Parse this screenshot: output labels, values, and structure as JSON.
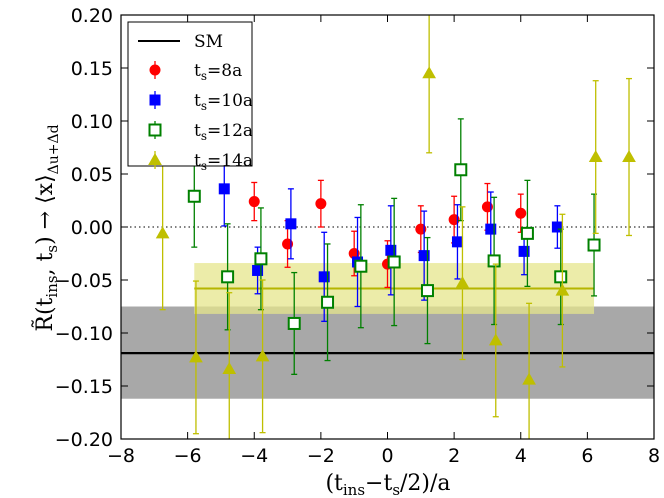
{
  "chart_data": {
    "type": "scatter",
    "xlabel": "(t_ins − t_s/2)/a",
    "ylabel": "R̃(t_ins, t_s) → ⟨x⟩_Δu+Δd",
    "xlim": [
      -8,
      8
    ],
    "ylim": [
      -0.2,
      0.2
    ],
    "x_ticks": [
      -8,
      -6,
      -4,
      -2,
      0,
      2,
      4,
      6,
      8
    ],
    "x_tick_labels": [
      "−8",
      "−6",
      "−4",
      "−2",
      "0",
      "2",
      "4",
      "6",
      "8"
    ],
    "y_ticks": [
      -0.2,
      -0.15,
      -0.1,
      -0.05,
      0.0,
      0.05,
      0.1,
      0.15,
      0.2
    ],
    "y_tick_labels": [
      "−0.20",
      "−0.15",
      "−0.10",
      "−0.05",
      "0.00",
      "0.05",
      "0.10",
      "0.15",
      "0.20"
    ],
    "zero_line": 0.0,
    "sm": {
      "name": "SM",
      "value": -0.119,
      "band": [
        -0.162,
        -0.075
      ],
      "color": "#000000",
      "band_color": "#a8a8a8"
    },
    "fit": {
      "value": -0.058,
      "band": [
        -0.082,
        -0.034
      ],
      "x_range": [
        -5.8,
        6.2
      ],
      "color": "#b5b500",
      "band_color": "#e6e68c"
    },
    "legend": {
      "sm_label": "SM",
      "location": "top-left"
    },
    "series": [
      {
        "name": "ts8",
        "label_main": "t",
        "label_sub": "s",
        "label_tail": "=8a",
        "color": "#ff0000",
        "marker": "circle",
        "filled": true,
        "points": [
          {
            "x": -4,
            "y": 0.024,
            "err": 0.018
          },
          {
            "x": -3,
            "y": -0.016,
            "err": 0.022
          },
          {
            "x": -2,
            "y": 0.022,
            "err": 0.022
          },
          {
            "x": -1,
            "y": -0.025,
            "err": 0.021
          },
          {
            "x": 0,
            "y": -0.035,
            "err": 0.022
          },
          {
            "x": 1,
            "y": -0.002,
            "err": 0.022
          },
          {
            "x": 2,
            "y": 0.007,
            "err": 0.022
          },
          {
            "x": 3,
            "y": 0.019,
            "err": 0.022
          },
          {
            "x": 4,
            "y": 0.013,
            "err": 0.018
          }
        ]
      },
      {
        "name": "ts10",
        "label_main": "t",
        "label_sub": "s",
        "label_tail": "=10a",
        "color": "#0000ff",
        "marker": "square",
        "filled": true,
        "points": [
          {
            "x": -4.9,
            "y": 0.036,
            "err": 0.035
          },
          {
            "x": -3.9,
            "y": -0.041,
            "err": 0.022
          },
          {
            "x": -2.9,
            "y": 0.003,
            "err": 0.033
          },
          {
            "x": -1.9,
            "y": -0.047,
            "err": 0.042
          },
          {
            "x": -0.9,
            "y": -0.033,
            "err": 0.042
          },
          {
            "x": 0.1,
            "y": -0.022,
            "err": 0.042
          },
          {
            "x": 1.1,
            "y": -0.027,
            "err": 0.042
          },
          {
            "x": 2.1,
            "y": -0.014,
            "err": 0.035
          },
          {
            "x": 3.1,
            "y": -0.002,
            "err": 0.035
          },
          {
            "x": 4.1,
            "y": -0.023,
            "err": 0.022
          },
          {
            "x": 5.1,
            "y": 0.0,
            "err": 0.02
          }
        ]
      },
      {
        "name": "ts12",
        "label_main": "t",
        "label_sub": "s",
        "label_tail": "=12a",
        "color": "#008000",
        "marker": "square",
        "filled": false,
        "points": [
          {
            "x": -5.8,
            "y": 0.029,
            "err": 0.048
          },
          {
            "x": -4.8,
            "y": -0.047,
            "err": 0.05
          },
          {
            "x": -3.8,
            "y": -0.03,
            "err": 0.048
          },
          {
            "x": -2.8,
            "y": -0.091,
            "err": 0.048
          },
          {
            "x": -1.8,
            "y": -0.071,
            "err": 0.055
          },
          {
            "x": -0.8,
            "y": -0.037,
            "err": 0.058
          },
          {
            "x": 0.2,
            "y": -0.033,
            "err": 0.06
          },
          {
            "x": 1.2,
            "y": -0.06,
            "err": 0.05
          },
          {
            "x": 2.2,
            "y": 0.054,
            "err": 0.048
          },
          {
            "x": 3.2,
            "y": -0.032,
            "err": 0.06
          },
          {
            "x": 4.2,
            "y": -0.006,
            "err": 0.05
          },
          {
            "x": 5.2,
            "y": -0.047,
            "err": 0.045
          },
          {
            "x": 6.2,
            "y": -0.017,
            "err": 0.048
          }
        ]
      },
      {
        "name": "ts14",
        "label_main": "t",
        "label_sub": "s",
        "label_tail": "=14a",
        "color": "#bfbf00",
        "marker": "triangle",
        "filled": true,
        "points": [
          {
            "x": -6.75,
            "y": -0.006,
            "err": 0.072
          },
          {
            "x": -5.75,
            "y": -0.123,
            "err": 0.072
          },
          {
            "x": -4.75,
            "y": -0.134,
            "err": 0.072
          },
          {
            "x": -3.75,
            "y": -0.122,
            "err": 0.072
          },
          {
            "x": 1.25,
            "y": 0.145,
            "err": 0.075
          },
          {
            "x": 2.25,
            "y": -0.053,
            "err": 0.072
          },
          {
            "x": 3.25,
            "y": -0.107,
            "err": 0.072
          },
          {
            "x": 4.25,
            "y": -0.144,
            "err": 0.072
          },
          {
            "x": 5.25,
            "y": -0.06,
            "err": 0.072
          },
          {
            "x": 6.25,
            "y": 0.066,
            "err": 0.072
          },
          {
            "x": 7.25,
            "y": 0.066,
            "err": 0.074
          }
        ]
      }
    ]
  }
}
